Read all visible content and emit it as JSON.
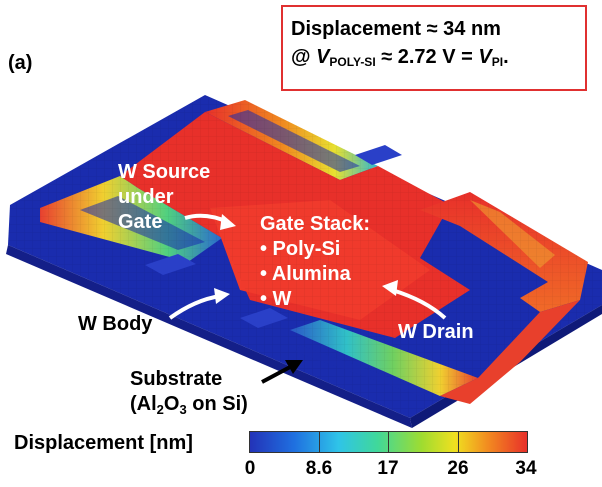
{
  "panel_label": "(a)",
  "info_box": {
    "line1": "Displacement ≈ 34 nm",
    "line2_prefix": "@ ",
    "v_symbol": "V",
    "v_sub": "POLY-SI",
    "line2_mid": " ≈ 2.72 V = ",
    "vpi_symbol": "V",
    "vpi_sub": "PI",
    "line2_end": ".",
    "border_color": "#e03030"
  },
  "labels": {
    "w_source": [
      "W Source",
      "under",
      "Gate"
    ],
    "gate_stack": [
      "Gate Stack:",
      "• Poly-Si",
      "• Alumina",
      "• W"
    ],
    "w_body": "W Body",
    "w_drain": "W Drain",
    "substrate_line1": "Substrate",
    "substrate_line2_prefix": "(Al",
    "substrate_sub1": "2",
    "substrate_mid": "O",
    "substrate_sub2": "3",
    "substrate_suffix": " on Si)"
  },
  "colorbar": {
    "title": "Displacement [nm]",
    "ticks": [
      "0",
      "8.6",
      "17",
      "26",
      "34"
    ],
    "colors": [
      "#2333b8",
      "#2fc4e8",
      "#9fdc30",
      "#f0e020",
      "#e8302a"
    ]
  }
}
